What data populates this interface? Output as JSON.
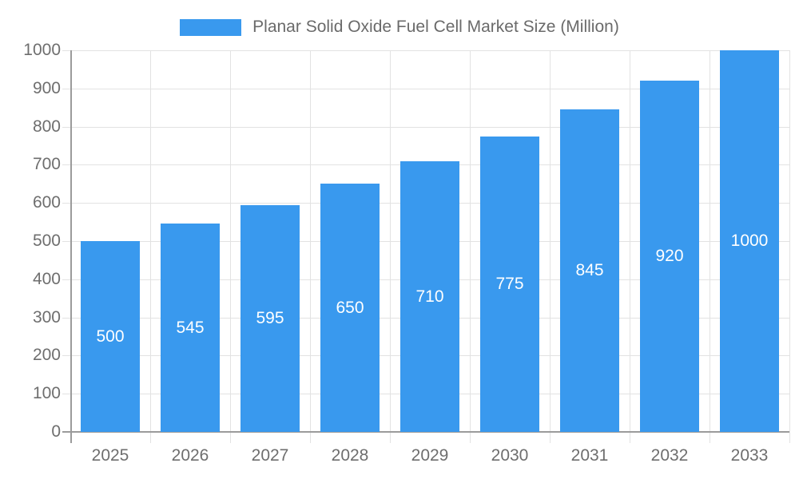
{
  "chart_data": {
    "type": "bar",
    "title": "Planar Solid Oxide Fuel Cell Market Size (Million)",
    "categories": [
      "2025",
      "2026",
      "2027",
      "2028",
      "2029",
      "2030",
      "2031",
      "2032",
      "2033"
    ],
    "values": [
      500,
      545,
      595,
      650,
      710,
      775,
      845,
      920,
      1000
    ],
    "xlabel": "",
    "ylabel": "",
    "ylim": [
      0,
      1000
    ],
    "ytick_step": 100,
    "ytick_labels": [
      "0",
      "100",
      "200",
      "300",
      "400",
      "500",
      "600",
      "700",
      "800",
      "900",
      "1000"
    ],
    "grid": true,
    "legend_position": "top-center",
    "bar_color": "#3999EE",
    "value_label_color": "#ffffff",
    "gridline_color": "#e2e2e2",
    "axis_color": "#9b9b9b",
    "tick_label_color": "#6e6e6e"
  },
  "legend": {
    "label": "Planar Solid Oxide Fuel Cell Market Size (Million)",
    "swatch_color": "#3999EE"
  }
}
